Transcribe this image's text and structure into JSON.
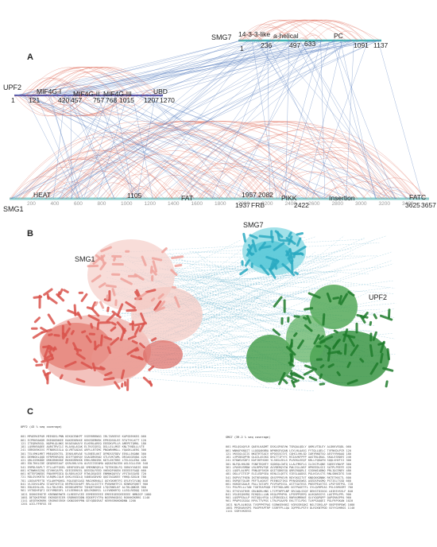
{
  "panels": {
    "a": "A",
    "b": "B",
    "c": "C"
  },
  "network": {
    "proteins": {
      "upf2": "UPF2",
      "smg7": "SMG7",
      "smg1": "SMG1"
    },
    "upf2_domains": [
      "MIF4G-I",
      "MIF4G-II",
      "MIF4G-III",
      "UBD"
    ],
    "upf2_positions": [
      "1",
      "121",
      "420",
      "457",
      "757",
      "768",
      "1015",
      "1207",
      "1270"
    ],
    "smg7_domains": [
      "14-3-3-like",
      "a-helical",
      "PC"
    ],
    "smg7_positions": [
      "1",
      "236",
      "497",
      "633",
      "1091",
      "1137"
    ],
    "smg1_domains": [
      "HEAT",
      "FAT",
      "FRB",
      "PIKK",
      "Insertion",
      "FATC"
    ],
    "smg1_positions": [
      "1105",
      "1957",
      "2082",
      "1937",
      "2422",
      "3625",
      "3657"
    ],
    "smg1_ticks": [
      "200",
      "400",
      "600",
      "800",
      "1000",
      "1200",
      "1400",
      "1600",
      "1800",
      "2000",
      "2200",
      "2400",
      "2600",
      "2800",
      "3000",
      "3200",
      "3400"
    ],
    "colors": {
      "intra": "#e06b5a",
      "inter": "#5f84c2",
      "smg1_bar": "#8fd0cf",
      "upf2_bar": "#5a54a8",
      "smg7_bar": "#43b7b8"
    }
  },
  "structure": {
    "smg1": "SMG1",
    "smg7": "SMG7",
    "upf2": "UPF2",
    "colors": {
      "smg1": "#e88b84",
      "smg7": "#4fc4d6",
      "upf2": "#2e8e3a",
      "links": "#56aac7"
    }
  },
  "sequences": {
    "upf2": {
      "title": "UPF2 (43 % seq coverage)",
      "lines": [
        "001 MPAERKEPAR MEEKDSLPNN KEKOCENKPT VSERRRRNGG IRLTAREEVE KAPSDEKKEG 060",
        "061 ECPRKRAKDR EKEKKENKEE RAKEEKRKKE KEKEDEMKRK EPRSDSKLEE RTATYKLKTT 120",
        "121 ITEQRKRSGL NQPHLQLNKS NYAEVAKAYV ELKRRLAREQ EEEDKVPLLR AMEPETQMKL 180",
        "181 LQVRKRADEE AARSTRVCLI RLAVQLASAK ELTKVIGEGL DSLLELLMSE KNLTYNDLLLVTE",
        "241 SRRSKRKSVS PTNKRGSSLA QLVRTSADAS ARPLLRTSMC PNGWRHMKLL YQAGKLAERG 300",
        "301 TELVMKLMRT MREASEKTEL IENVLKRVAE YLENEELKKT DFMDSSFDDV EEKLLEKANK 360",
        "361 DEHNGKLQQD KFRPEKRQVQ IDIFTQKRQV SGAGDRSRAD GTLEVKTAML DRIAGGEQDA 420",
        "421 QRLSSRKDDE DRKSRHKKKE RKKKSRRKKK ERKLRRKSRK KDTLEKTRRE LTELGGLERA 480",
        "481 EDLTKKLIDE QEQEKEEAAT QSRLRKLVVA ALRIIISEAMA AQDAIRAIEN ASLSGLLSVK 540",
        "541 ERPDLRAPLT ETLLAFFQSEL NEKFGGRLQG VMEKNEQELA TQTEKSDLFQ SKRAYVADIS 600",
        "601 KTRWKKSIRQ GTVHHIAFPL GEEIEEREEL DEEEDLFEED VHEKDFKKEN EEEEEEFAQD 660",
        "661 NTTEFDNEDS FNAVRPEDIQ DLRDVLKGSF RTWLDSASEE ENMNKQQYSV VFSTASSAVD 720",
        "721 RDLGVVKRTO VLRQMLCQLH QVKLVSGDLQ VANEASDVHD QQGTAGAKEE YHHQLSDGLN 780",
        "781 LDGVAPEFTD YSLAHFMQHSL RQLEQESASG MAGVKRHALI QGYGKHRTFG QYLRYIYLNQ 840",
        "841 VLISHVLDPA STAEFSHTCQ KRPRISSHAPT RRLSLSSTTV PVNVNHTFCS KENRDFQHET 900",
        "901 EDLKSHLLRL SLLTDLEHEL KEDDIAMFRV TGHQETSHGE LTQCRNELKF ALTHLQNKSR 960",
        "961 VVTKDHFQFI DIYVMDEDFL LELEERKKLR QDLEKDKRIL LLVVNDKRTQ LLEGLREDQQ 1020",
        "1021 DSKKEEKETE KRENNERWTR GLREEEVCEE EEMEEEEEEE EMEEEGEEDEEEEEE NMNIGP 1080",
        "1081 DETQKEPEKE EKEKDEEIER SRDRKEEDDN EDDEPIYTPA NSERRKSDSG RSKHKEKRRS 1140",
        "1141 AESERKRKRK SRSRKESRSH GKNGSKRPRN GEYQDDSRAT KERRSRKHDNDNN 1200",
        "1201 AICLFFRFGS EE"
      ]
    },
    "smg7": {
      "title": "SMG7 (39.2 % seq coverage)",
      "lines": [
        "001 MSLQSAQYLR QAEVLKADMT DSKLGPAEVW TSRQALQDLY QKMLVTDLEY ALDKKVEQDL 060",
        "061 WNHAFKNQIT LLQGQAKNRA NPNRSEVQAN LSYLHLAASG FYTQLLQELC TVFNVDLPCR 120",
        "121 VKSSQLGIIS NKQTHTSAIV KPQSSSCSYI CQHCLVHLGD IARYRNQTSQ AESYYRHAAQ 180",
        "181 LVPSNGQPYN QLAILASSKG DHLTTIFYYC RSIAVKFPFP AASTNLQKAL SKALESRDEV 240",
        "241 KTKWGVSDFI KAFIKFHGHV YLSKSLEKLS PLREKLEEQF KRLLFQKAFN SQQLVHVTVI 300",
        "301 NLFQLHHLRD FSNETEQHTY SQDEQLCWTQ LLALFMSFLG ILCKCPLQNE SQEESYNAYP 360",
        "361 LPAVKVSMDW LRLRPRVFQE AVVDERQYIW PWLISLLNSF HPHEEDLSSI SATPLPEEFE 420",
        "421 LQGFLALRPS FRNLDFSKGH QGITGDKEGQ QRRIRQQRLI SIGKWIADNQ PRLIQCENEV 480",
        "481 GKLLFITEIP ELILEDPSEA KENLILQETS VIESLAADGS PGLKSVLSTS RNLSNNCDTG 540",
        "541 EKPVVTFKEN IKTREVNRDQ GRSFPPKEVR RDYSKGITVT KNDGKKDNNK RKTETKKCTL 600",
        "601 EKPQETQLDR PEFTLAGKVT PEENSCFIKG PPAKDSEWGS ASEDSPASMQ PSTISLTSSD 660",
        "661 HGKGEGAALR PALLTATAPV PVVFAPSSSL ASTTGATEGS PKEEPEAVTSS LPSFSRTPSL 720",
        "721 PVLPELLLTAN TGDTEAPGQD FEFTKDLAMS GGTPAGETFL SYLQVRPEAS PVLSSMGSMT 780",
        "781 ETYGYATRVR GRLNGRLHNS LTCPTHPPLNP SRCAQLSSQY DEKSTDIGGG LDIEEVSVLF 840",
        "841 VSLDSQHVRQ RIHQSLLLAN HSQLPPHPHL LPSRPPSRPQ ALHGARSSYS LAGTPRLPPL 900",
        "901 LQSPPEALLP RSTQQLHFSA LGPGRSGDLS RNPASMRNVE GLVYQQPQPP QAPSMASPPA 960",
        "961 PPAPSGSGGA RPVLTTVPGS LTRLPSAAPD EKLTTCLPDG TLRPSAQQEI PGLFRPSKAN 1020",
        "1021 NLPLALNSSA TVSPPMTPAG SGRWSEKNSI VGRSSRSQKI NSLTGRSLAP SKSPERPEWG 1080",
        "1081 PPGRARVSPS PASPPAPTRP SSRFFPLLQA IQPPELPSFV DLRIKNTPDD SSYYGVHRGS 1140",
        "1141 SSRYVKEESS"
      ]
    }
  }
}
